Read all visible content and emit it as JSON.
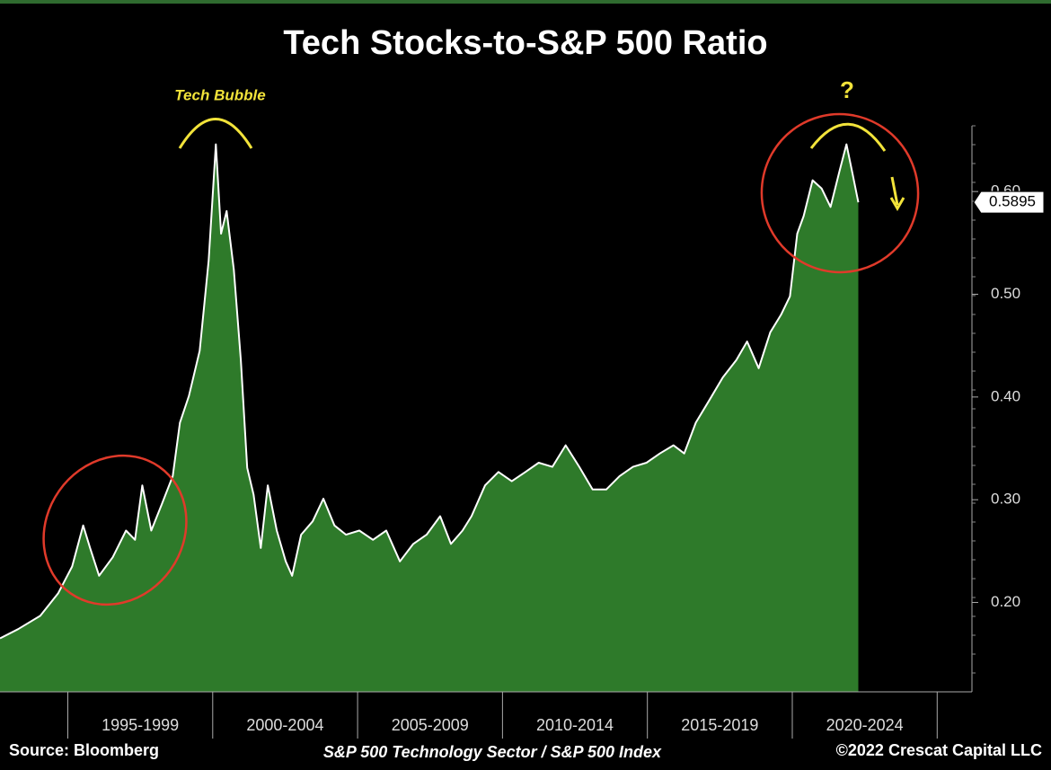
{
  "chart_data": {
    "type": "area",
    "title": "Tech Stocks-to-S&P 500  Ratio",
    "subtitle": "S&P 500 Technology Sector / S&P 500 Index",
    "source": "Source: Bloomberg",
    "credit": "©2022 Crescat Capital LLC",
    "annotations": [
      "Tech Bubble",
      "?"
    ],
    "color": "#2e7a2a",
    "line_color": "#ffffff",
    "x": [
      1992.66,
      1993.28,
      1994.05,
      1994.67,
      1995.15,
      1995.53,
      1995.77,
      1996.08,
      1996.55,
      1997.01,
      1997.32,
      1997.57,
      1997.88,
      1998.25,
      1998.62,
      1998.87,
      1999.18,
      1999.55,
      1999.86,
      2000.11,
      2000.29,
      2000.48,
      2000.73,
      2000.97,
      2001.19,
      2001.41,
      2001.66,
      2001.9,
      2002.21,
      2002.52,
      2002.74,
      2003.05,
      2003.45,
      2003.82,
      2004.2,
      2004.6,
      2005.06,
      2005.53,
      2005.99,
      2006.46,
      2006.92,
      2007.38,
      2007.85,
      2008.22,
      2008.62,
      2008.93,
      2009.4,
      2009.86,
      2010.32,
      2010.79,
      2011.25,
      2011.72,
      2012.18,
      2012.65,
      2013.11,
      2013.58,
      2014.04,
      2014.5,
      2014.97,
      2015.43,
      2015.9,
      2016.27,
      2016.67,
      2017.14,
      2017.6,
      2018.07,
      2018.44,
      2018.84,
      2019.24,
      2019.61,
      2019.92,
      2020.17,
      2020.39,
      2020.7,
      2021.01,
      2021.32,
      2021.63,
      2021.87,
      2022.09,
      2022.28
    ],
    "values": [
      0.165,
      0.174,
      0.187,
      0.209,
      0.235,
      0.275,
      0.253,
      0.226,
      0.244,
      0.27,
      0.261,
      0.314,
      0.27,
      0.296,
      0.323,
      0.375,
      0.401,
      0.445,
      0.533,
      0.646,
      0.559,
      0.581,
      0.524,
      0.436,
      0.331,
      0.305,
      0.253,
      0.314,
      0.27,
      0.24,
      0.226,
      0.266,
      0.279,
      0.301,
      0.275,
      0.266,
      0.27,
      0.261,
      0.27,
      0.24,
      0.257,
      0.266,
      0.284,
      0.257,
      0.27,
      0.284,
      0.314,
      0.327,
      0.318,
      0.327,
      0.336,
      0.332,
      0.353,
      0.332,
      0.31,
      0.31,
      0.323,
      0.332,
      0.336,
      0.345,
      0.353,
      0.345,
      0.375,
      0.397,
      0.419,
      0.436,
      0.454,
      0.428,
      0.463,
      0.48,
      0.498,
      0.559,
      0.576,
      0.611,
      0.603,
      0.585,
      0.62,
      0.646,
      0.616,
      0.5895
    ],
    "xlim": [
      1992.66,
      2026.2
    ],
    "x_bands": [
      {
        "start": 1995,
        "end": 2000,
        "label": "1995-1999"
      },
      {
        "start": 2000,
        "end": 2005,
        "label": "2000-2004"
      },
      {
        "start": 2005,
        "end": 2010,
        "label": "2005-2009"
      },
      {
        "start": 2010,
        "end": 2015,
        "label": "2010-2014"
      },
      {
        "start": 2015,
        "end": 2020,
        "label": "2015-2019"
      },
      {
        "start": 2020,
        "end": 2025,
        "label": "2020-2024"
      }
    ],
    "ylim": [
      0.113,
      0.664
    ],
    "yticks": [
      {
        "value": 0.2,
        "label": "0.20"
      },
      {
        "value": 0.3,
        "label": "0.30"
      },
      {
        "value": 0.4,
        "label": "0.40"
      },
      {
        "value": 0.5,
        "label": "0.50"
      },
      {
        "value": 0.6,
        "label": "0.60"
      }
    ]
  }
}
